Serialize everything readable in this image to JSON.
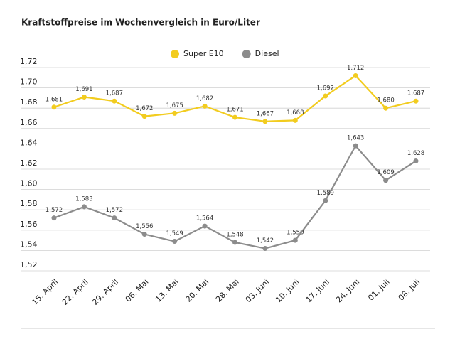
{
  "chart_data": {
    "type": "line",
    "title": "Kraftstoffpreise im Wochenvergleich in Euro/Liter",
    "categories": [
      "15. April",
      "22. April",
      "29. April",
      "06. Mai",
      "13. Mai",
      "20. Mai",
      "28. Mai",
      "03. Juni",
      "10. Juni",
      "17. Juni",
      "24. Juni",
      "01. Juli",
      "08. Juli"
    ],
    "series": [
      {
        "name": "Super E10",
        "color": "#f2cc1f",
        "values": [
          1.681,
          1.691,
          1.687,
          1.672,
          1.675,
          1.682,
          1.671,
          1.667,
          1.668,
          1.692,
          1.712,
          1.68,
          1.687
        ],
        "value_labels": [
          "1,681",
          "1,691",
          "1,687",
          "1,672",
          "1,675",
          "1,682",
          "1,671",
          "1,667",
          "1,668",
          "1,692",
          "1,712",
          "1,680",
          "1,687"
        ]
      },
      {
        "name": "Diesel",
        "color": "#8c8c8c",
        "values": [
          1.572,
          1.583,
          1.572,
          1.556,
          1.549,
          1.564,
          1.548,
          1.542,
          1.55,
          1.589,
          1.643,
          1.609,
          1.628
        ],
        "value_labels": [
          "1,572",
          "1,583",
          "1,572",
          "1,556",
          "1,549",
          "1,564",
          "1,548",
          "1,542",
          "1,550",
          "1,589",
          "1,643",
          "1,609",
          "1,628"
        ]
      }
    ],
    "ylim": [
      1.52,
      1.72
    ],
    "yticks": [
      {
        "value": 1.52,
        "label": "1,52"
      },
      {
        "value": 1.54,
        "label": "1,54"
      },
      {
        "value": 1.56,
        "label": "1,56"
      },
      {
        "value": 1.58,
        "label": "1,58"
      },
      {
        "value": 1.6,
        "label": "1,60"
      },
      {
        "value": 1.62,
        "label": "1,62"
      },
      {
        "value": 1.64,
        "label": "1,64"
      },
      {
        "value": 1.66,
        "label": "1,66"
      },
      {
        "value": 1.68,
        "label": "1,68"
      },
      {
        "value": 1.7,
        "label": "1,70"
      },
      {
        "value": 1.72,
        "label": "1,72"
      }
    ],
    "grid": true,
    "legend": "top"
  }
}
